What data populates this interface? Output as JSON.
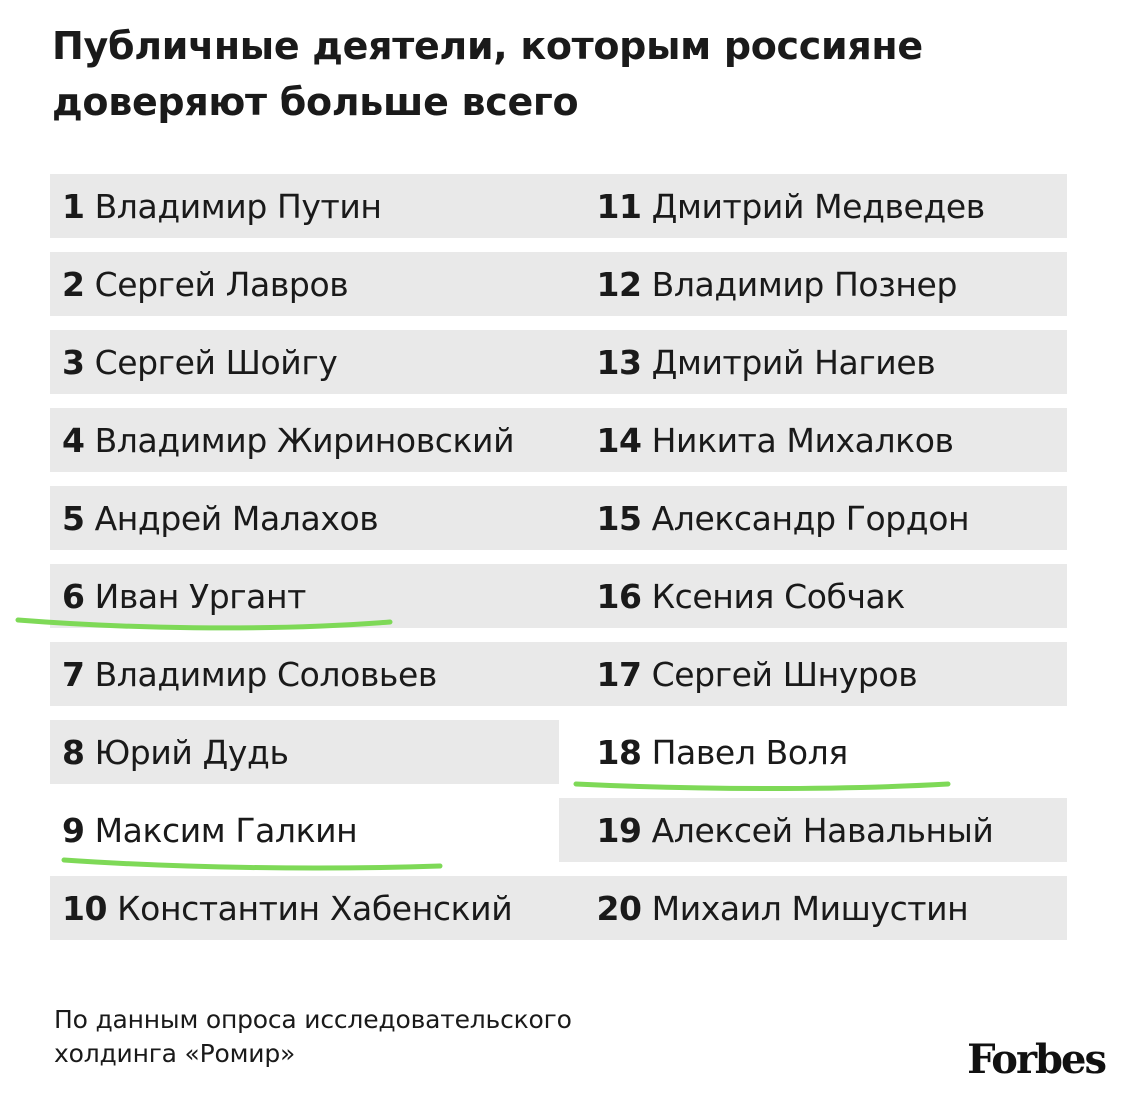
{
  "title": "Публичные деятели, которым россияне доверяют больше всего",
  "items": [
    {
      "rank": "1",
      "name": "Владимир Путин"
    },
    {
      "rank": "2",
      "name": "Сергей Лавров"
    },
    {
      "rank": "3",
      "name": "Сергей Шойгу"
    },
    {
      "rank": "4",
      "name": "Владимир Жириновский"
    },
    {
      "rank": "5",
      "name": "Андрей Малахов"
    },
    {
      "rank": "6",
      "name": "Иван Ургант"
    },
    {
      "rank": "7",
      "name": "Владимир Соловьев"
    },
    {
      "rank": "8",
      "name": "Юрий Дудь"
    },
    {
      "rank": "9",
      "name": "Максим Галкин"
    },
    {
      "rank": "10",
      "name": "Константин Хабенский"
    },
    {
      "rank": "11",
      "name": "Дмитрий Медведев"
    },
    {
      "rank": "12",
      "name": "Владимир Познер"
    },
    {
      "rank": "13",
      "name": "Дмитрий Нагиев"
    },
    {
      "rank": "14",
      "name": "Никита Михалков"
    },
    {
      "rank": "15",
      "name": "Александр Гордон"
    },
    {
      "rank": "16",
      "name": "Ксения Собчак"
    },
    {
      "rank": "17",
      "name": "Сергей Шнуров"
    },
    {
      "rank": "18",
      "name": "Павел Воля"
    },
    {
      "rank": "19",
      "name": "Алексей Навальный"
    },
    {
      "rank": "20",
      "name": "Михаил Мишустин"
    }
  ],
  "highlighted_ranks": [
    "6",
    "9",
    "18"
  ],
  "highlight_color": "#7ed957",
  "source": {
    "line1": "По данным опроса исследовательского",
    "line2": "холдинга «Ромир»"
  },
  "logo": "Forbes"
}
